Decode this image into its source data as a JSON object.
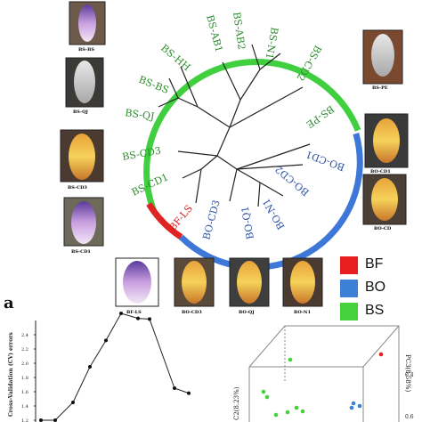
{
  "tree": {
    "leaves": [
      "BS-AB1",
      "BS-AB2",
      "BS-N1",
      "BS-CD2",
      "BS-HH",
      "BS-BS",
      "BS-QJ",
      "BS-PE",
      "BS-CD3",
      "BS-CD1",
      "BF-LS",
      "BO-CD3",
      "BO-Q1",
      "BO-N1",
      "BO-CD2",
      "BO-CD1"
    ],
    "colors": {
      "BS": "#2e8b2e",
      "BF": "#d42020",
      "BO": "#2b4fa8"
    },
    "arc_colors": {
      "BS": "#3fcf3f",
      "BF": "#e02424",
      "BO": "#3d78d8"
    }
  },
  "photos": [
    {
      "caption": "BS-BS"
    },
    {
      "caption": "BS-QJ"
    },
    {
      "caption": "BS-CD3"
    },
    {
      "caption": "BS-CD1"
    },
    {
      "caption": "BF-LS"
    },
    {
      "caption": "BO-CD3"
    },
    {
      "caption": "BO-QJ"
    },
    {
      "caption": "BO-N1"
    },
    {
      "caption": "BS-PE"
    },
    {
      "caption": "BO-CD1"
    },
    {
      "caption": "BO-CD"
    }
  ],
  "legend": [
    {
      "label": "BF",
      "color": "#e61e1e"
    },
    {
      "label": "BO",
      "color": "#3b82d6"
    },
    {
      "label": "BS",
      "color": "#44d23c"
    }
  ],
  "panel_letter": "a",
  "cv_chart": {
    "ylabel": "Cross-Validation (CV) errors",
    "ytick_labels": [
      "1.2",
      "1.4",
      "1.6",
      "1.8",
      "2.0",
      "2.2",
      "2.4"
    ],
    "values": [
      1.1,
      1.12,
      1.45,
      1.95,
      2.32,
      2.7,
      2.63,
      2.62,
      1.65,
      1.58
    ]
  },
  "pca": {
    "pc3_label": "PC3(8.58%)",
    "pc2_label": "C2(8.23%)",
    "tick": "0.4",
    "tick2": "0.6"
  }
}
